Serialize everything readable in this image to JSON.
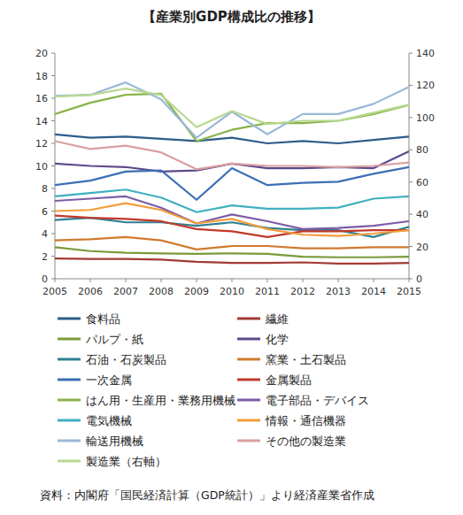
{
  "chart_data": {
    "type": "line",
    "title": "【産業別GDP構成比の推移】",
    "source": "資料：内閣府「国民経済計算（GDP統計）」より経済産業省作成",
    "x": [
      2005,
      2006,
      2007,
      2008,
      2009,
      2010,
      2011,
      2012,
      2013,
      2014,
      2015
    ],
    "xlim": [
      2005,
      2015
    ],
    "xticks": [
      2005,
      2006,
      2007,
      2008,
      2009,
      2010,
      2011,
      2012,
      2013,
      2014,
      2015
    ],
    "ylim": [
      0,
      20
    ],
    "yticks": [
      0,
      2,
      4,
      6,
      8,
      10,
      12,
      14,
      16,
      18,
      20
    ],
    "y2lim": [
      0,
      140
    ],
    "y2ticks": [
      0,
      20,
      40,
      60,
      80,
      100,
      120,
      140
    ],
    "grid": false,
    "legend": "bottom",
    "series": [
      {
        "name": "食料品",
        "color": "#2e5c8a",
        "values": [
          12.8,
          12.5,
          12.6,
          12.4,
          12.2,
          12.5,
          12.0,
          12.2,
          12.0,
          12.3,
          12.6
        ]
      },
      {
        "name": "繊維",
        "color": "#a33a35",
        "values": [
          1.8,
          1.75,
          1.75,
          1.7,
          1.5,
          1.4,
          1.4,
          1.45,
          1.35,
          1.35,
          1.4
        ]
      },
      {
        "name": "パルプ・紙",
        "color": "#7a9a3a",
        "values": [
          2.8,
          2.45,
          2.3,
          2.25,
          2.2,
          2.25,
          2.2,
          1.95,
          1.9,
          1.9,
          1.95
        ]
      },
      {
        "name": "化学",
        "color": "#5e4a8c",
        "values": [
          10.2,
          10.0,
          9.9,
          9.5,
          9.6,
          10.2,
          9.8,
          9.8,
          9.9,
          9.8,
          11.3
        ]
      },
      {
        "name": "石油・石炭製品",
        "color": "#2f7f93",
        "values": [
          5.2,
          5.4,
          5.0,
          5.0,
          4.7,
          5.0,
          4.5,
          4.3,
          4.3,
          3.7,
          4.6
        ]
      },
      {
        "name": "窯業・土石製品",
        "color": "#d07a2e",
        "values": [
          3.4,
          3.5,
          3.7,
          3.4,
          2.6,
          2.9,
          2.9,
          2.7,
          2.7,
          2.8,
          2.8
        ]
      },
      {
        "name": "一次金属",
        "color": "#3b6fb5",
        "values": [
          8.3,
          8.7,
          9.5,
          9.6,
          7.0,
          9.8,
          8.3,
          8.5,
          8.6,
          9.3,
          9.9
        ]
      },
      {
        "name": "金属製品",
        "color": "#c0392b",
        "values": [
          5.6,
          5.4,
          5.3,
          5.1,
          4.4,
          4.2,
          3.7,
          4.2,
          4.2,
          4.3,
          4.3
        ]
      },
      {
        "name": "はん用・生産用・業務用機械",
        "color": "#8ab34a",
        "values": [
          14.6,
          15.6,
          16.3,
          16.4,
          12.2,
          13.2,
          13.8,
          13.8,
          14.0,
          14.6,
          15.4
        ]
      },
      {
        "name": "電子部品・デバイス",
        "color": "#7d5ba6",
        "values": [
          6.9,
          7.1,
          7.3,
          6.3,
          4.9,
          5.7,
          5.1,
          4.4,
          4.5,
          4.7,
          5.1
        ]
      },
      {
        "name": "電気機械",
        "color": "#3fb0c0",
        "values": [
          7.3,
          7.6,
          7.9,
          7.2,
          5.9,
          6.5,
          6.2,
          6.2,
          6.3,
          7.1,
          7.3
        ]
      },
      {
        "name": "情報・通信機器",
        "color": "#f39c3a",
        "values": [
          6.0,
          6.1,
          6.7,
          6.1,
          4.9,
          5.3,
          4.4,
          3.9,
          3.8,
          4.0,
          4.3
        ]
      },
      {
        "name": "輸送用機械",
        "color": "#9ab8d8",
        "values": [
          16.2,
          16.3,
          17.4,
          15.9,
          12.5,
          14.8,
          12.8,
          14.6,
          14.6,
          15.5,
          17.0
        ]
      },
      {
        "name": "その他の製造業",
        "color": "#d9a0a0",
        "values": [
          12.2,
          11.5,
          11.8,
          11.2,
          9.7,
          10.2,
          10.0,
          10.0,
          9.9,
          10.0,
          10.3
        ]
      },
      {
        "name": "製造業（右軸）",
        "color": "#b8d890",
        "axis": "y2",
        "values": [
          113,
          114,
          118,
          114,
          94,
          104,
          96,
          98,
          98,
          103,
          108
        ]
      }
    ]
  }
}
